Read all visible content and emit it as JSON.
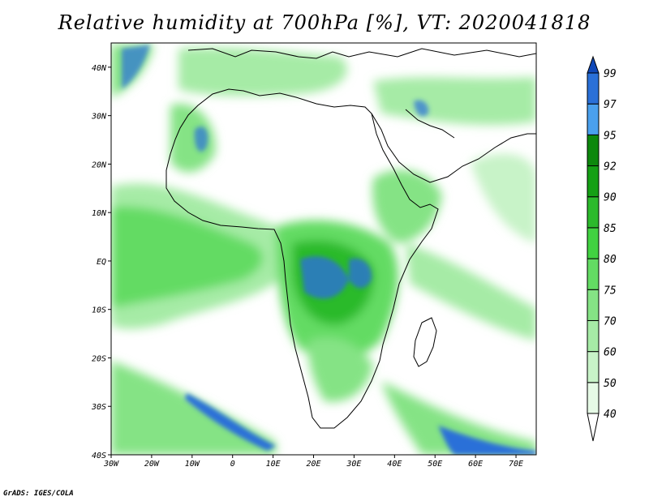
{
  "title": "Relative humidity at 700hPa [%], VT: 2020041818",
  "credit": "GrADS: IGES/COLA",
  "map": {
    "lon_range": [
      -30,
      75
    ],
    "lat_range": [
      -40,
      45
    ],
    "x_ticks": [
      "30W",
      "20W",
      "10W",
      "0",
      "10E",
      "20E",
      "30E",
      "40E",
      "50E",
      "60E",
      "70E"
    ],
    "y_ticks": [
      "40N",
      "30N",
      "20N",
      "10N",
      "EQ",
      "10S",
      "20S",
      "30S",
      "40S"
    ]
  },
  "colorbar": {
    "levels": [
      "40",
      "50",
      "60",
      "70",
      "75",
      "80",
      "85",
      "90",
      "92",
      "95",
      "97",
      "99"
    ],
    "colors": [
      "#ffffff",
      "#e6fae6",
      "#c8f3c8",
      "#a6eba6",
      "#85e385",
      "#63db63",
      "#41d241",
      "#2cba2c",
      "#15a015",
      "#0d880d",
      "#4aa0ee",
      "#2a70d8",
      "#1048b8"
    ]
  }
}
